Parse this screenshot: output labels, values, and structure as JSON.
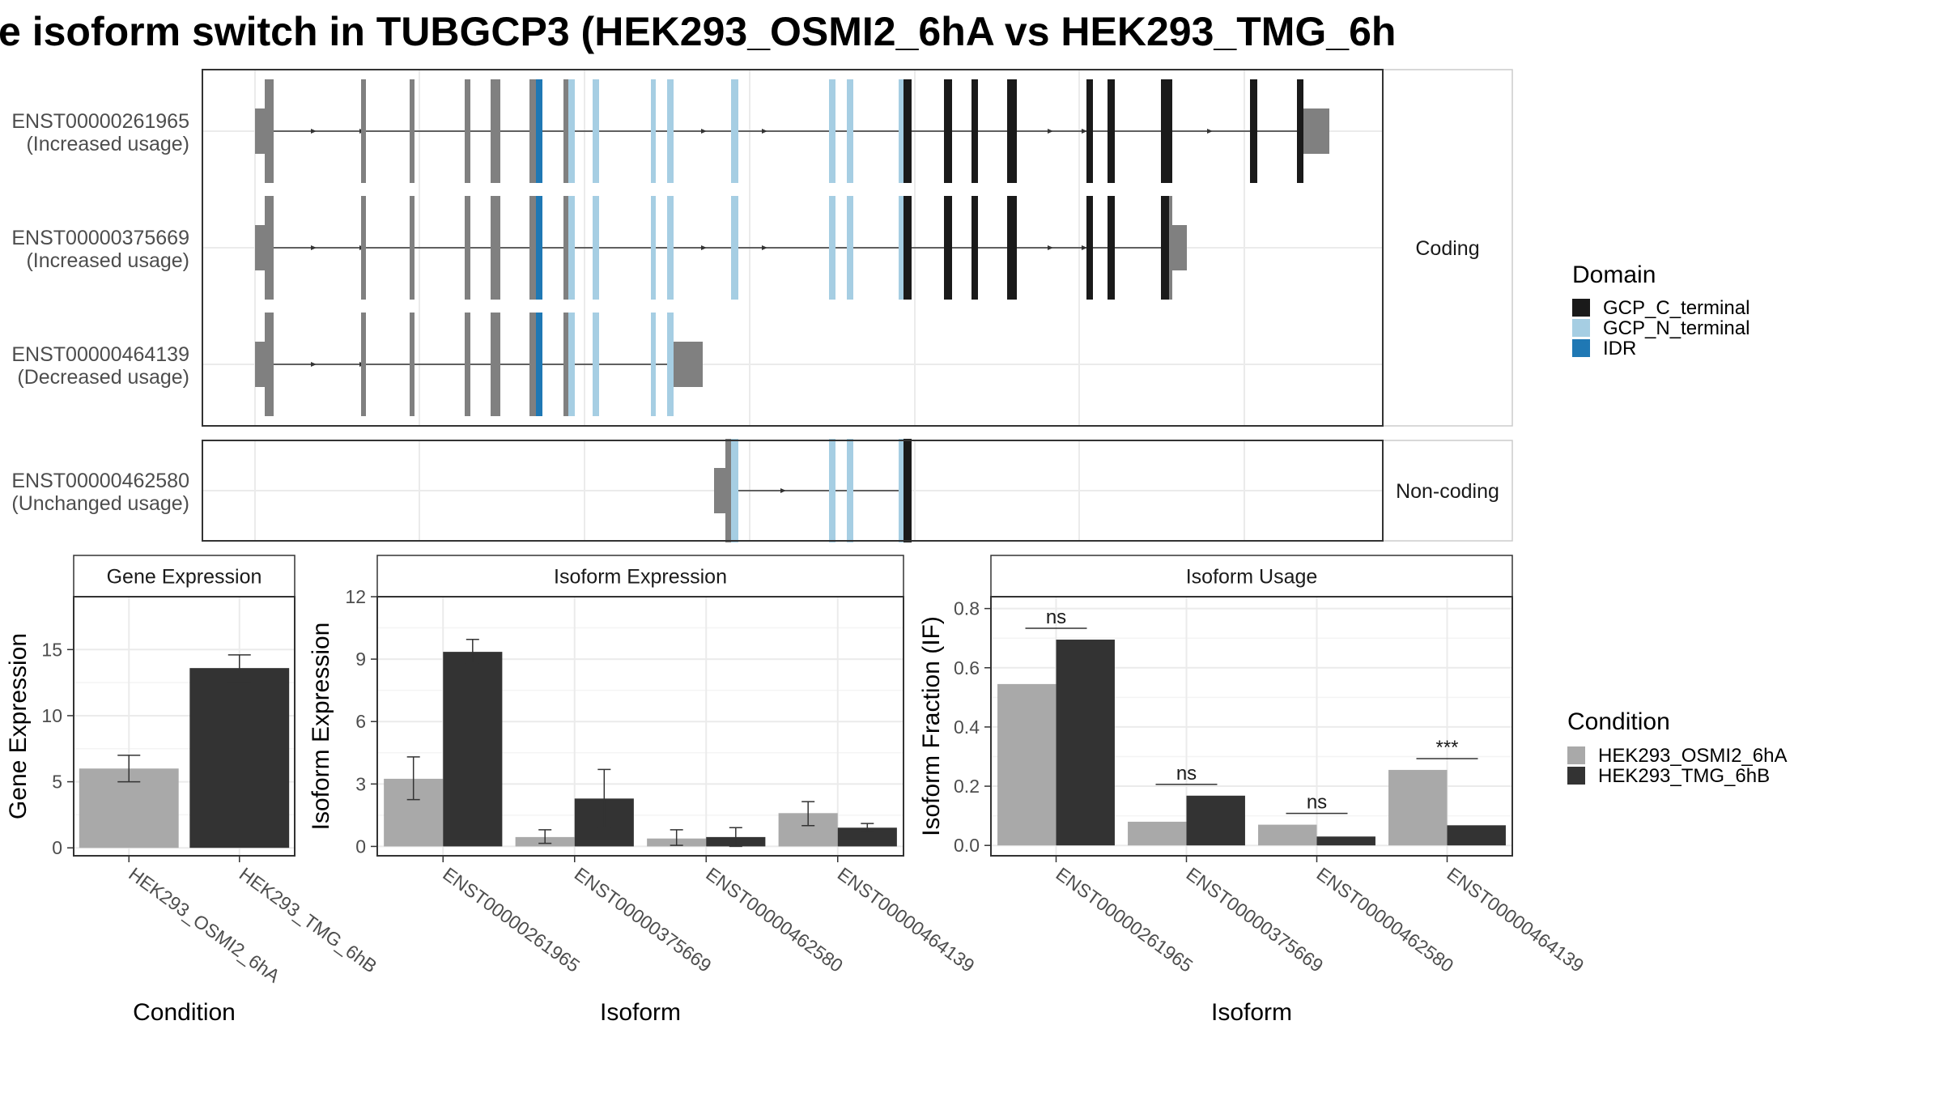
{
  "title": "e isoform switch in TUBGCP3 (HEK293_OSMI2_6hA vs HEK293_TMG_6h",
  "colors": {
    "GCP_C_terminal": "#1a1a1a",
    "GCP_N_terminal": "#a6cee3",
    "IDR": "#1f78b4",
    "noncoding_exon": "#808080",
    "HEK293_OSMI2_6hA": "#a9a9a9",
    "HEK293_TMG_6hB": "#333333"
  },
  "chart_data": [
    {
      "type": "other",
      "panel": "isoform-structure",
      "facets": [
        "Coding",
        "Non-coding"
      ],
      "isoforms": [
        {
          "id": "ENST00000261965",
          "usage": "(Increased usage)",
          "facet": "Coding"
        },
        {
          "id": "ENST00000375669",
          "usage": "(Increased usage)",
          "facet": "Coding"
        },
        {
          "id": "ENST00000464139",
          "usage": "(Decreased usage)",
          "facet": "Coding"
        },
        {
          "id": "ENST00000462580",
          "usage": "(Unchanged usage)",
          "facet": "Non-coding"
        }
      ],
      "legend": {
        "title": "Domain",
        "entries": [
          "GCP_C_terminal",
          "GCP_N_terminal",
          "IDR"
        ],
        "position": "right"
      }
    },
    {
      "type": "bar",
      "title": "Gene Expression",
      "xlabel": "Condition",
      "ylabel": "Gene Expression",
      "categories": [
        "HEK293_OSMI2_6hA",
        "HEK293_TMG_6hB"
      ],
      "values": [
        6.0,
        13.6
      ],
      "errors": [
        [
          5.0,
          7.0
        ],
        [
          12.5,
          14.6
        ]
      ],
      "ylim": [
        -0.6,
        19.0
      ],
      "yticks": [
        0,
        5,
        10,
        15
      ]
    },
    {
      "type": "bar",
      "title": "Isoform Expression",
      "xlabel": "Isoform",
      "ylabel": "Isoform Expression",
      "categories": [
        "ENST00000261965",
        "ENST00000375669",
        "ENST00000462580",
        "ENST00000464139"
      ],
      "series": [
        {
          "name": "HEK293_OSMI2_6hA",
          "values": [
            3.25,
            0.45,
            0.38,
            1.6
          ],
          "errors": [
            [
              2.25,
              4.3
            ],
            [
              0.15,
              0.8
            ],
            [
              0.05,
              0.8
            ],
            [
              1.0,
              2.15
            ]
          ]
        },
        {
          "name": "HEK293_TMG_6hB",
          "values": [
            9.35,
            2.3,
            0.45,
            0.9
          ],
          "errors": [
            [
              8.8,
              9.95
            ],
            [
              0.9,
              3.7
            ],
            [
              0.0,
              0.9
            ],
            [
              0.72,
              1.1
            ]
          ]
        }
      ],
      "ylim": [
        -0.45,
        12.0
      ],
      "yticks": [
        0,
        3,
        6,
        9,
        12
      ]
    },
    {
      "type": "bar",
      "title": "Isoform Usage",
      "xlabel": "Isoform",
      "ylabel": "Isoform Fraction (IF)",
      "categories": [
        "ENST00000261965",
        "ENST00000375669",
        "ENST00000462580",
        "ENST00000464139"
      ],
      "series": [
        {
          "name": "HEK293_OSMI2_6hA",
          "values": [
            0.545,
            0.08,
            0.07,
            0.255
          ]
        },
        {
          "name": "HEK293_TMG_6hB",
          "values": [
            0.695,
            0.168,
            0.03,
            0.068
          ]
        }
      ],
      "significance": [
        "ns",
        "ns",
        "ns",
        "***"
      ],
      "ylim": [
        -0.035,
        0.84
      ],
      "yticks": [
        "0.0",
        "0.2",
        "0.4",
        "0.6",
        "0.8"
      ],
      "legend": {
        "title": "Condition",
        "entries": [
          "HEK293_OSMI2_6hA",
          "HEK293_TMG_6hB"
        ],
        "position": "right"
      }
    }
  ]
}
